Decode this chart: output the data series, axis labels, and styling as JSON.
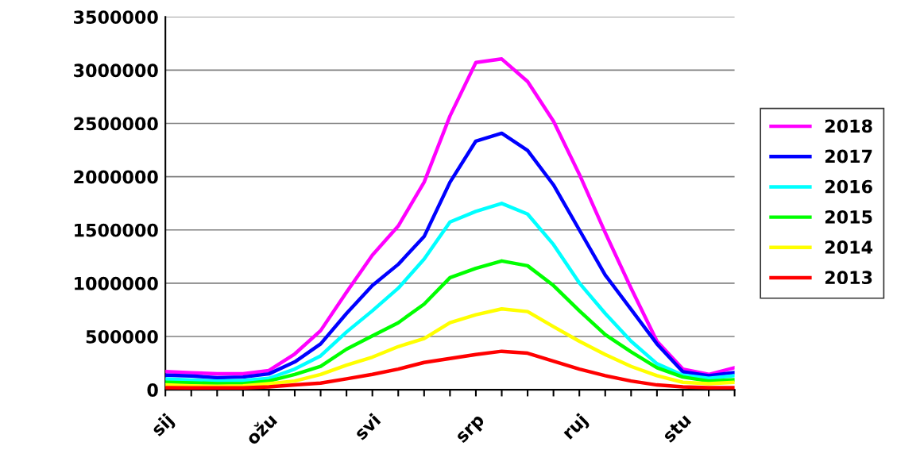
{
  "chart_data": {
    "type": "line",
    "categories": [
      "sij",
      null,
      null,
      null,
      "ožu",
      null,
      null,
      null,
      "svi",
      null,
      null,
      null,
      "srp",
      null,
      null,
      null,
      "ruj",
      null,
      null,
      null,
      "stu",
      null,
      null
    ],
    "series": [
      {
        "name": "2018",
        "color": "#ff00ff",
        "values": [
          170000,
          160000,
          150000,
          150000,
          180000,
          336000,
          555000,
          915000,
          1264000,
          1537000,
          1948000,
          2570000,
          3072000,
          3105000,
          2893000,
          2520000,
          2022000,
          1475000,
          953000,
          455000,
          194000,
          144000,
          207000
        ]
      },
      {
        "name": "2017",
        "color": "#0000ff",
        "values": [
          137000,
          130000,
          112000,
          119000,
          149000,
          261000,
          430000,
          716000,
          978000,
          1177000,
          1438000,
          1948000,
          2334000,
          2408000,
          2246000,
          1923000,
          1500000,
          1077000,
          754000,
          430000,
          169000,
          132000,
          162000
        ]
      },
      {
        "name": "2016",
        "color": "#00ffff",
        "values": [
          102000,
          90000,
          82000,
          87000,
          107000,
          194000,
          318000,
          542000,
          741000,
          953000,
          1226000,
          1575000,
          1674000,
          1749000,
          1649000,
          1363000,
          1002000,
          716000,
          455000,
          244000,
          137000,
          107000,
          132000
        ]
      },
      {
        "name": "2015",
        "color": "#00ff00",
        "values": [
          70000,
          65000,
          57000,
          57000,
          82000,
          144000,
          219000,
          381000,
          505000,
          629000,
          804000,
          1052000,
          1140000,
          1209000,
          1164000,
          978000,
          741000,
          517000,
          356000,
          207000,
          119000,
          82000,
          94000
        ]
      },
      {
        "name": "2014",
        "color": "#ffff00",
        "values": [
          45000,
          37000,
          32000,
          37000,
          57000,
          82000,
          144000,
          231000,
          306000,
          405000,
          480000,
          629000,
          704000,
          759000,
          734000,
          592000,
          455000,
          331000,
          219000,
          132000,
          70000,
          57000,
          70000
        ]
      },
      {
        "name": "2013",
        "color": "#ff0000",
        "values": [
          20000,
          17000,
          17000,
          17000,
          27000,
          45000,
          62000,
          102000,
          144000,
          194000,
          256000,
          293000,
          331000,
          361000,
          343000,
          269000,
          194000,
          132000,
          82000,
          45000,
          27000,
          20000,
          20000
        ]
      }
    ],
    "ylim": [
      0,
      3500000
    ],
    "yticks": [
      0,
      500000,
      1000000,
      1500000,
      2000000,
      2500000,
      3000000,
      3500000
    ],
    "grid": "y",
    "legend": "right",
    "line_style": "solid"
  }
}
